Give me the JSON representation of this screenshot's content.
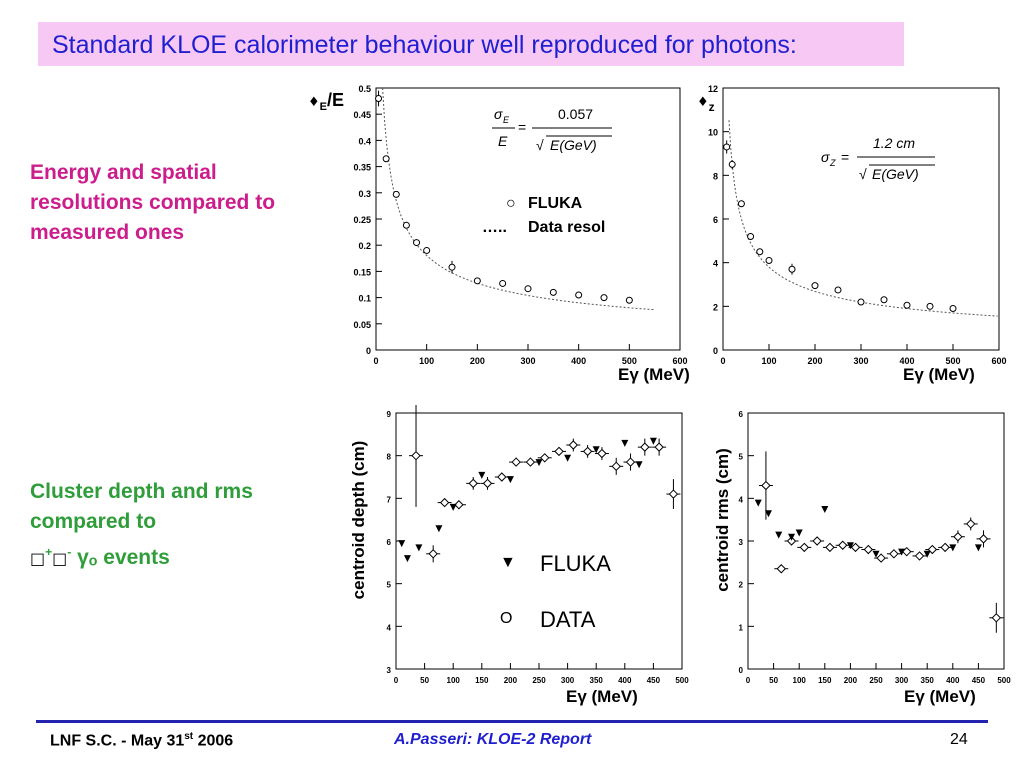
{
  "slide": {
    "title": "Standard KLOE calorimeter behaviour well reproduced for photons:",
    "text_energy": "Energy and spatial resolutions compared to measured ones",
    "text_cluster_line1": "Cluster depth and rms",
    "text_cluster_line2": "compared to",
    "text_cluster_line3_suffix": "events",
    "sym_box": "□",
    "sym_plus": "+",
    "sym_minus": "-",
    "sym_gamma": "γ",
    "sym_sub": "ₒ"
  },
  "footer": {
    "left": "LNF S.C. - May 31st 2006",
    "left_main": "LNF S.C. - May 31",
    "left_sup": "st",
    "left_tail": " 2006",
    "center": "A.Passeri: KLOE-2 Report",
    "page": "24"
  },
  "colors": {
    "title_bg": "#f6c8f3",
    "title_text": "#1f1fd0",
    "magenta": "#cc1d8c",
    "green": "#2e9d3a",
    "footer_line": "#2323b0",
    "footer_center": "#1f1fd0"
  },
  "chart_data": [
    {
      "id": "energy-resolution",
      "type": "scatter",
      "ylabel": "σE/E",
      "ylabel_main": "E",
      "ylabel_tail": "/E",
      "xlabel": "Eγ (MeV)",
      "xlim": [
        0,
        600
      ],
      "ylim": [
        0,
        0.5
      ],
      "xticks": [
        0,
        100,
        200,
        300,
        400,
        500,
        600
      ],
      "yticks": [
        0,
        0.05,
        0.1,
        0.15,
        0.2,
        0.25,
        0.3,
        0.35,
        0.4,
        0.45,
        0.5
      ],
      "formula_numerator": "0.057",
      "formula_denominator": "E(GeV)",
      "legend": [
        {
          "symbol": "○",
          "label": "FLUKA"
        },
        {
          "symbol": "…..",
          "label": "Data resol"
        }
      ],
      "points": [
        {
          "x": 5,
          "y": 0.48,
          "err": 0.015
        },
        {
          "x": 20,
          "y": 0.365,
          "err": 0.005
        },
        {
          "x": 40,
          "y": 0.297,
          "err": 0.004
        },
        {
          "x": 60,
          "y": 0.238,
          "err": 0.004
        },
        {
          "x": 80,
          "y": 0.205,
          "err": 0.004
        },
        {
          "x": 100,
          "y": 0.19,
          "err": 0.004
        },
        {
          "x": 150,
          "y": 0.158,
          "err": 0.012
        },
        {
          "x": 200,
          "y": 0.132,
          "err": 0.003
        },
        {
          "x": 250,
          "y": 0.127,
          "err": 0.003
        },
        {
          "x": 300,
          "y": 0.117,
          "err": 0.003
        },
        {
          "x": 350,
          "y": 0.11,
          "err": 0.003
        },
        {
          "x": 400,
          "y": 0.105,
          "err": 0.003
        },
        {
          "x": 450,
          "y": 0.1,
          "err": 0.003
        },
        {
          "x": 500,
          "y": 0.095,
          "err": 0.003
        }
      ],
      "curve": {
        "a": 0.057,
        "xmin": 5,
        "xmax": 550
      }
    },
    {
      "id": "z-resolution",
      "type": "scatter",
      "ylabel": "σz",
      "ylabel_main": "z",
      "xlabel": "Eγ (MeV)",
      "xlim": [
        0,
        600
      ],
      "ylim": [
        0,
        12
      ],
      "xticks": [
        0,
        100,
        200,
        300,
        400,
        500,
        600
      ],
      "yticks": [
        0,
        2,
        4,
        6,
        8,
        10,
        12
      ],
      "formula_numerator": "1.2 cm",
      "formula_denominator": "E(GeV)",
      "points": [
        {
          "x": 8,
          "y": 9.3,
          "err": 0.3
        },
        {
          "x": 20,
          "y": 8.5,
          "err": 0.2
        },
        {
          "x": 40,
          "y": 6.7,
          "err": 0.15
        },
        {
          "x": 60,
          "y": 5.2,
          "err": 0.15
        },
        {
          "x": 80,
          "y": 4.5,
          "err": 0.12
        },
        {
          "x": 100,
          "y": 4.1,
          "err": 0.12
        },
        {
          "x": 150,
          "y": 3.7,
          "err": 0.25
        },
        {
          "x": 200,
          "y": 2.95,
          "err": 0.1
        },
        {
          "x": 250,
          "y": 2.75,
          "err": 0.1
        },
        {
          "x": 300,
          "y": 2.2,
          "err": 0.1
        },
        {
          "x": 350,
          "y": 2.3,
          "err": 0.1
        },
        {
          "x": 400,
          "y": 2.05,
          "err": 0.1
        },
        {
          "x": 450,
          "y": 2.0,
          "err": 0.1
        },
        {
          "x": 500,
          "y": 1.9,
          "err": 0.1
        }
      ],
      "curve": {
        "a": 1.2,
        "xmin": 5,
        "xmax": 600
      }
    },
    {
      "id": "centroid-depth",
      "type": "scatter",
      "ylabel": "centroid depth (cm)",
      "xlabel": "Eγ (MeV)",
      "xlim": [
        0,
        500
      ],
      "ylim": [
        3,
        9
      ],
      "xticks": [
        0,
        50,
        100,
        150,
        200,
        250,
        300,
        350,
        400,
        450,
        500
      ],
      "yticks": [
        3,
        4,
        5,
        6,
        7,
        8,
        9
      ],
      "legend": [
        {
          "symbol": "▼",
          "label": "FLUKA"
        },
        {
          "symbol": "O",
          "label": "DATA"
        }
      ],
      "fluka": [
        {
          "x": 10,
          "y": 5.95
        },
        {
          "x": 20,
          "y": 5.6
        },
        {
          "x": 40,
          "y": 5.85
        },
        {
          "x": 75,
          "y": 6.3
        },
        {
          "x": 100,
          "y": 6.8
        },
        {
          "x": 150,
          "y": 7.55
        },
        {
          "x": 200,
          "y": 7.45
        },
        {
          "x": 250,
          "y": 7.85
        },
        {
          "x": 300,
          "y": 7.95
        },
        {
          "x": 350,
          "y": 8.15
        },
        {
          "x": 400,
          "y": 8.3
        },
        {
          "x": 425,
          "y": 7.8
        },
        {
          "x": 450,
          "y": 8.35
        }
      ],
      "data": [
        {
          "x": 35,
          "y": 8.0,
          "err": 1.2
        },
        {
          "x": 65,
          "y": 5.7,
          "err": 0.2
        },
        {
          "x": 85,
          "y": 6.9,
          "err": 0.1
        },
        {
          "x": 110,
          "y": 6.85,
          "err": 0.1
        },
        {
          "x": 135,
          "y": 7.35,
          "err": 0.15
        },
        {
          "x": 160,
          "y": 7.35,
          "err": 0.15
        },
        {
          "x": 185,
          "y": 7.5,
          "err": 0.1
        },
        {
          "x": 210,
          "y": 7.85,
          "err": 0.1
        },
        {
          "x": 235,
          "y": 7.85,
          "err": 0.1
        },
        {
          "x": 260,
          "y": 7.95,
          "err": 0.1
        },
        {
          "x": 285,
          "y": 8.1,
          "err": 0.1
        },
        {
          "x": 310,
          "y": 8.25,
          "err": 0.15
        },
        {
          "x": 335,
          "y": 8.1,
          "err": 0.15
        },
        {
          "x": 360,
          "y": 8.05,
          "err": 0.15
        },
        {
          "x": 385,
          "y": 7.75,
          "err": 0.2
        },
        {
          "x": 410,
          "y": 7.85,
          "err": 0.2
        },
        {
          "x": 435,
          "y": 8.2,
          "err": 0.2
        },
        {
          "x": 460,
          "y": 8.2,
          "err": 0.2
        },
        {
          "x": 485,
          "y": 7.1,
          "err": 0.35
        }
      ]
    },
    {
      "id": "centroid-rms",
      "type": "scatter",
      "ylabel": "centroid rms (cm)",
      "xlabel": "Eγ (MeV)",
      "xlim": [
        0,
        500
      ],
      "ylim": [
        0,
        6
      ],
      "xticks": [
        0,
        50,
        100,
        150,
        200,
        250,
        300,
        350,
        400,
        450,
        500
      ],
      "yticks": [
        0,
        1,
        2,
        3,
        4,
        5,
        6
      ],
      "fluka": [
        {
          "x": 20,
          "y": 3.9
        },
        {
          "x": 40,
          "y": 3.65
        },
        {
          "x": 60,
          "y": 3.15
        },
        {
          "x": 85,
          "y": 3.1
        },
        {
          "x": 100,
          "y": 3.2
        },
        {
          "x": 150,
          "y": 3.75
        },
        {
          "x": 200,
          "y": 2.9
        },
        {
          "x": 250,
          "y": 2.7
        },
        {
          "x": 300,
          "y": 2.75
        },
        {
          "x": 350,
          "y": 2.7
        },
        {
          "x": 400,
          "y": 2.85
        },
        {
          "x": 450,
          "y": 2.85
        }
      ],
      "data": [
        {
          "x": 35,
          "y": 4.3,
          "err": 0.8
        },
        {
          "x": 65,
          "y": 2.35,
          "err": 0.1
        },
        {
          "x": 85,
          "y": 3.0,
          "err": 0.1
        },
        {
          "x": 110,
          "y": 2.85,
          "err": 0.1
        },
        {
          "x": 135,
          "y": 3.0,
          "err": 0.1
        },
        {
          "x": 160,
          "y": 2.85,
          "err": 0.1
        },
        {
          "x": 185,
          "y": 2.9,
          "err": 0.1
        },
        {
          "x": 210,
          "y": 2.85,
          "err": 0.1
        },
        {
          "x": 235,
          "y": 2.8,
          "err": 0.1
        },
        {
          "x": 260,
          "y": 2.6,
          "err": 0.1
        },
        {
          "x": 285,
          "y": 2.7,
          "err": 0.1
        },
        {
          "x": 310,
          "y": 2.75,
          "err": 0.1
        },
        {
          "x": 335,
          "y": 2.65,
          "err": 0.1
        },
        {
          "x": 360,
          "y": 2.8,
          "err": 0.1
        },
        {
          "x": 385,
          "y": 2.85,
          "err": 0.1
        },
        {
          "x": 410,
          "y": 3.1,
          "err": 0.15
        },
        {
          "x": 435,
          "y": 3.4,
          "err": 0.15
        },
        {
          "x": 460,
          "y": 3.05,
          "err": 0.2
        },
        {
          "x": 485,
          "y": 1.2,
          "err": 0.35
        }
      ]
    }
  ]
}
